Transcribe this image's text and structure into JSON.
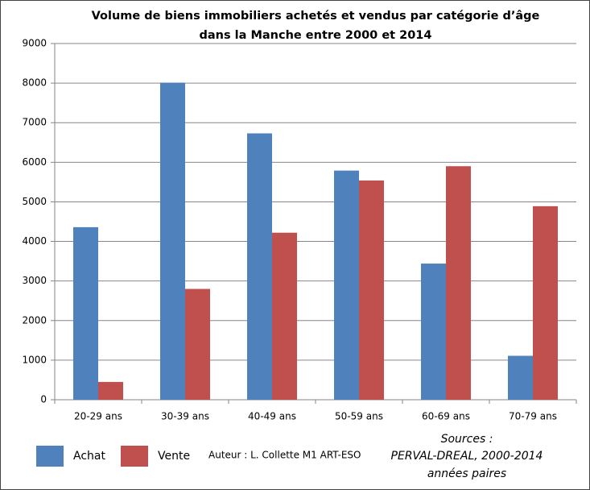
{
  "chart_data": {
    "type": "bar",
    "title": [
      "Volume de biens immobiliers achetés et vendus par catégorie d’âge",
      "dans la Manche entre 2000 et 2014"
    ],
    "categories": [
      "20-29 ans",
      "30-39 ans",
      "40-49 ans",
      "50-59 ans",
      "60-69 ans",
      "70-79 ans"
    ],
    "series": [
      {
        "name": "Achat",
        "color": "#4f81bd",
        "values": [
          4360,
          8010,
          6730,
          5790,
          3440,
          1110
        ]
      },
      {
        "name": "Vente",
        "color": "#c0504d",
        "values": [
          450,
          2800,
          4220,
          5540,
          5900,
          4890
        ]
      }
    ],
    "ylim": [
      0,
      9000
    ],
    "yticks": [
      0,
      1000,
      2000,
      3000,
      4000,
      5000,
      6000,
      7000,
      8000,
      9000
    ],
    "grid": true,
    "legend": "bottom",
    "annotations": {
      "author": "Auteur : L. Collette M1 ART-ESO",
      "sources": [
        "Sources :",
        "PERVAL-DREAL, 2000-2014",
        "années paires"
      ]
    }
  }
}
